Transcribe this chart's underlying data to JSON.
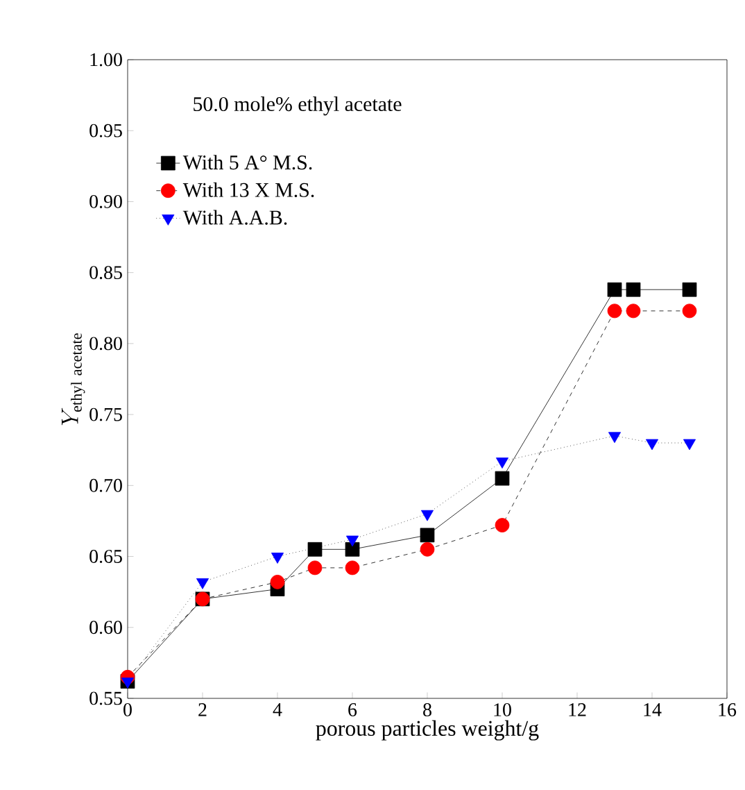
{
  "chart_data": {
    "type": "line",
    "xlabel": "porous particles weight/g",
    "ylabel": "Y_{\\mathrm{ethyl\\ acetate}}",
    "annotations": [
      "50.0 mole% ethyl acetate"
    ],
    "xlim": [
      0,
      16
    ],
    "xticks": [
      0,
      2,
      4,
      6,
      8,
      10,
      12,
      14,
      16
    ],
    "ylim": [
      0.55,
      1.0
    ],
    "yticks": [
      {
        "value": 0.55,
        "label": "0.55"
      },
      {
        "value": 0.6,
        "label": "0.60"
      },
      {
        "value": 0.65,
        "label": "0.65"
      },
      {
        "value": 0.7,
        "label": "0.70"
      },
      {
        "value": 0.75,
        "label": "0.75"
      },
      {
        "value": 0.8,
        "label": "0.80"
      },
      {
        "value": 0.85,
        "label": "0.85"
      },
      {
        "value": 0.9,
        "label": "0.90"
      },
      {
        "value": 0.95,
        "label": "0.95"
      },
      {
        "value": 1.0,
        "label": "1.00"
      }
    ],
    "legend": "top left",
    "grid": false,
    "series": [
      {
        "name": "With 5 A° M.S.",
        "color": "#000000",
        "marker": "square",
        "line_style": "solid",
        "x": [
          0,
          2,
          4,
          5,
          6,
          8,
          10,
          13,
          13.5,
          15
        ],
        "values": [
          0.562,
          0.62,
          0.627,
          0.655,
          0.655,
          0.665,
          0.705,
          0.838,
          0.838,
          0.838
        ]
      },
      {
        "name": "With 13 X M.S.",
        "color": "#ff0000",
        "marker": "circle",
        "line_style": "dashed",
        "x": [
          0,
          2,
          4,
          5,
          6,
          8,
          10,
          13,
          13.5,
          15
        ],
        "values": [
          0.565,
          0.62,
          0.632,
          0.642,
          0.642,
          0.655,
          0.672,
          0.823,
          0.823,
          0.823
        ]
      },
      {
        "name": "With  A.A.B.",
        "color": "#0000ff",
        "marker": "triangle",
        "line_style": "dotted",
        "x": [
          0,
          2,
          4,
          6,
          8,
          10,
          13,
          14,
          15
        ],
        "values": [
          0.562,
          0.632,
          0.65,
          0.662,
          0.68,
          0.717,
          0.735,
          0.73,
          0.73
        ]
      }
    ]
  }
}
